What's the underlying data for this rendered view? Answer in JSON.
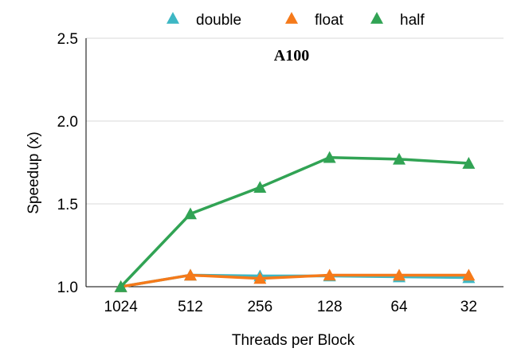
{
  "chart_data": {
    "type": "line",
    "title": "A100",
    "xlabel": "Threads per Block",
    "ylabel": "Speedup (x)",
    "categories": [
      "1024",
      "512",
      "256",
      "128",
      "64",
      "32"
    ],
    "ylim": [
      1.0,
      2.5
    ],
    "yticks": [
      "1.0",
      "1.5",
      "2.0",
      "2.5"
    ],
    "grid": true,
    "legend_position": "top",
    "series": [
      {
        "name": "double",
        "color": "#3DB7C4",
        "marker": "triangle",
        "values": [
          1.0,
          1.07,
          1.065,
          1.065,
          1.06,
          1.055
        ]
      },
      {
        "name": "float",
        "color": "#F57A1A",
        "marker": "triangle",
        "values": [
          1.0,
          1.07,
          1.05,
          1.07,
          1.07,
          1.07
        ]
      },
      {
        "name": "half",
        "color": "#31A354",
        "marker": "triangle",
        "values": [
          1.0,
          1.44,
          1.6,
          1.78,
          1.77,
          1.745
        ]
      }
    ]
  }
}
